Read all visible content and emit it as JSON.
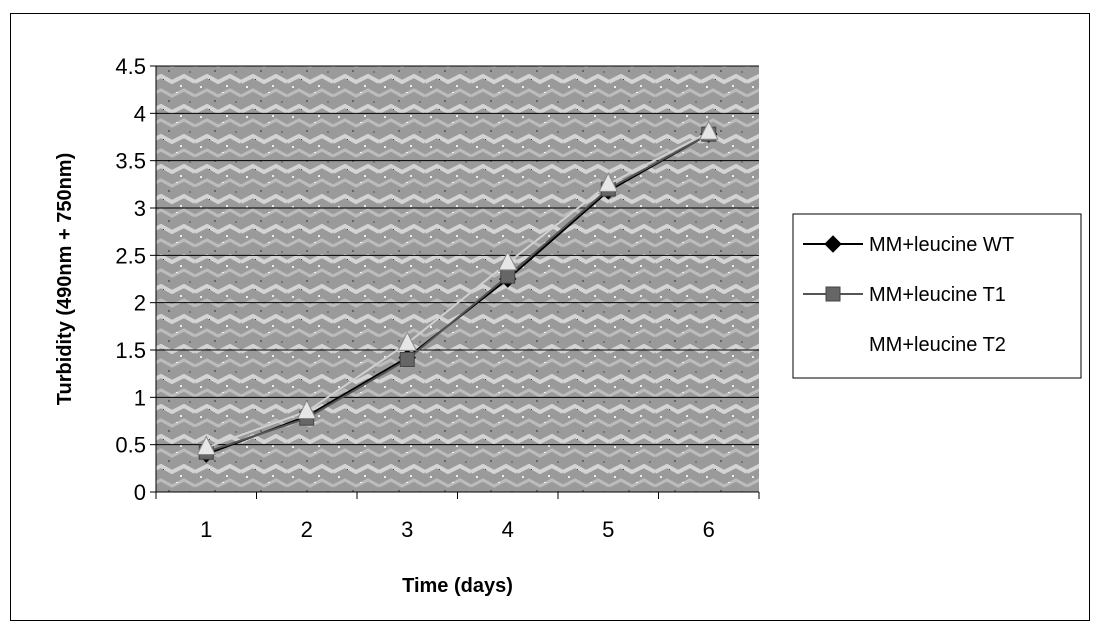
{
  "chart_data": {
    "type": "line",
    "xlabel": "Time (days)",
    "ylabel": "Turbidity (490nm + 750nm)",
    "categories": [
      "1",
      "2",
      "3",
      "4",
      "5",
      "6"
    ],
    "ylim": [
      0,
      4.5
    ],
    "yticks": [
      "0",
      "0.5",
      "1",
      "1.5",
      "2",
      "2.5",
      "3",
      "3.5",
      "4",
      "4.5"
    ],
    "grid": true,
    "legend_position": "right",
    "series": [
      {
        "name": "MM+leucine WT",
        "values": [
          0.4,
          0.8,
          1.42,
          2.25,
          3.18,
          3.78
        ],
        "marker": "diamond",
        "color": "#000000"
      },
      {
        "name": "MM+leucine T1",
        "values": [
          0.42,
          0.78,
          1.4,
          2.28,
          3.2,
          3.78
        ],
        "marker": "square",
        "color": "#666666"
      },
      {
        "name": "MM+leucine T2",
        "values": [
          0.47,
          0.85,
          1.57,
          2.42,
          3.25,
          3.8
        ],
        "marker": "triangle",
        "color": "#e6e6e6"
      }
    ]
  }
}
